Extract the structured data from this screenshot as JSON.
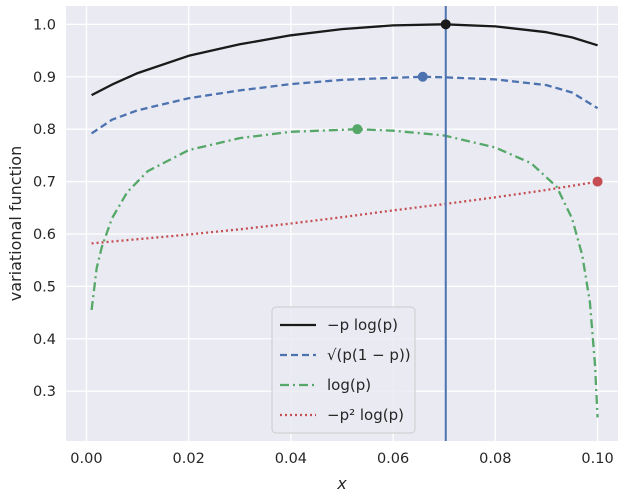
{
  "chart_data": {
    "type": "line",
    "xlabel": "x",
    "ylabel": "variational function",
    "xlim": [
      -0.004,
      0.104
    ],
    "ylim": [
      0.205,
      1.035
    ],
    "x_ticks": [
      "0.00",
      "0.02",
      "0.04",
      "0.06",
      "0.08",
      "0.10"
    ],
    "y_ticks": [
      "0.3",
      "0.4",
      "0.5",
      "0.6",
      "0.7",
      "0.8",
      "0.9",
      "1.0"
    ],
    "grid": true,
    "background": "#eaeaf2",
    "vertical_line": {
      "x": 0.0703,
      "color": "#4c72b0"
    },
    "legend_placement": "lower-center",
    "series": [
      {
        "name": "−p log(p)",
        "color": "#1a1a1a",
        "style": "solid",
        "x": [
          0.001,
          0.005,
          0.01,
          0.02,
          0.03,
          0.04,
          0.05,
          0.06,
          0.07,
          0.08,
          0.09,
          0.095,
          0.1
        ],
        "y": [
          0.865,
          0.885,
          0.907,
          0.94,
          0.962,
          0.979,
          0.991,
          0.998,
          1.0,
          0.996,
          0.985,
          0.975,
          0.96
        ],
        "marker": {
          "x": 0.0703,
          "y": 1.0
        }
      },
      {
        "name": "√(p(1 − p))",
        "color": "#4c72b0",
        "style": "dashed",
        "x": [
          0.001,
          0.005,
          0.01,
          0.02,
          0.03,
          0.04,
          0.05,
          0.06,
          0.066,
          0.07,
          0.08,
          0.09,
          0.095,
          0.1
        ],
        "y": [
          0.792,
          0.818,
          0.836,
          0.859,
          0.874,
          0.886,
          0.894,
          0.898,
          0.9,
          0.899,
          0.895,
          0.884,
          0.87,
          0.84
        ],
        "marker": {
          "x": 0.0658,
          "y": 0.9
        }
      },
      {
        "name": "log(p)",
        "color": "#55a868",
        "style": "dashdot",
        "x": [
          0.001,
          0.002,
          0.003,
          0.005,
          0.008,
          0.012,
          0.02,
          0.03,
          0.04,
          0.053,
          0.06,
          0.07,
          0.08,
          0.087,
          0.092,
          0.095,
          0.097,
          0.0985,
          0.0995,
          0.1
        ],
        "y": [
          0.455,
          0.535,
          0.575,
          0.63,
          0.68,
          0.72,
          0.76,
          0.783,
          0.795,
          0.8,
          0.797,
          0.788,
          0.765,
          0.735,
          0.69,
          0.63,
          0.56,
          0.47,
          0.35,
          0.25
        ],
        "marker": {
          "x": 0.053,
          "y": 0.8
        }
      },
      {
        "name": "−p² log(p)",
        "color": "#c44e52",
        "style": "dotted",
        "x": [
          0.001,
          0.01,
          0.02,
          0.03,
          0.04,
          0.05,
          0.06,
          0.07,
          0.08,
          0.09,
          0.1
        ],
        "y": [
          0.582,
          0.59,
          0.599,
          0.609,
          0.62,
          0.632,
          0.645,
          0.657,
          0.67,
          0.684,
          0.7
        ],
        "marker": {
          "x": 0.1,
          "y": 0.7
        }
      }
    ]
  }
}
